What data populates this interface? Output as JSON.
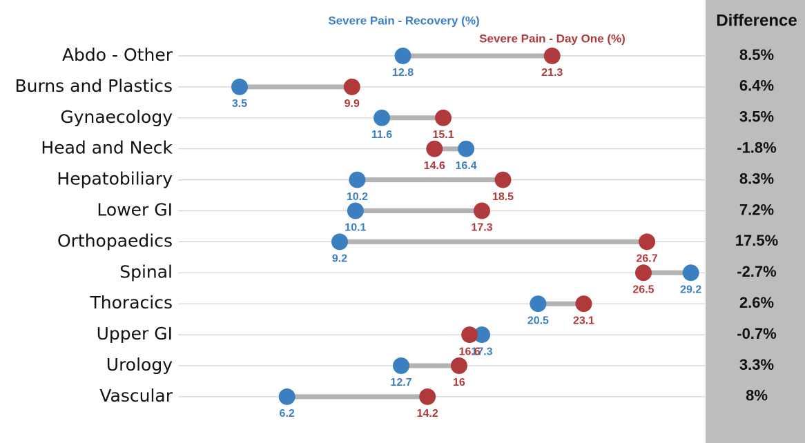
{
  "chart_data": {
    "type": "dumbbell",
    "categories": [
      "Abdo - Other",
      "Burns and Plastics",
      "Gynaecology",
      "Head and Neck",
      "Hepatobiliary",
      "Lower GI",
      "Orthopaedics",
      "Spinal",
      "Thoracics",
      "Upper GI",
      "Urology",
      "Vascular"
    ],
    "series": [
      {
        "name": "Severe Pain - Recovery (%)",
        "color": "#3b7fc1",
        "values": [
          12.8,
          3.5,
          11.6,
          16.4,
          10.2,
          10.1,
          9.2,
          29.2,
          20.5,
          17.3,
          12.7,
          6.2
        ]
      },
      {
        "name": "Severe Pain - Day One (%)",
        "color": "#b0393b",
        "values": [
          21.3,
          9.9,
          15.1,
          14.6,
          18.5,
          17.3,
          26.7,
          26.5,
          23.1,
          16.6,
          16,
          14.2
        ]
      }
    ],
    "xlim": [
      0,
      30
    ],
    "difference": {
      "title": "Difference",
      "values": [
        8.5,
        6.4,
        3.5,
        -1.8,
        8.3,
        7.2,
        17.5,
        -2.7,
        2.6,
        -0.7,
        3.3,
        8
      ],
      "value_labels": [
        "8.5%",
        "6.4%",
        "3.5%",
        "-1.8%",
        "8.3%",
        "7.2%",
        "17.5%",
        "-2.7%",
        "2.6%",
        "-0.7%",
        "3.3%",
        "8%"
      ]
    }
  }
}
